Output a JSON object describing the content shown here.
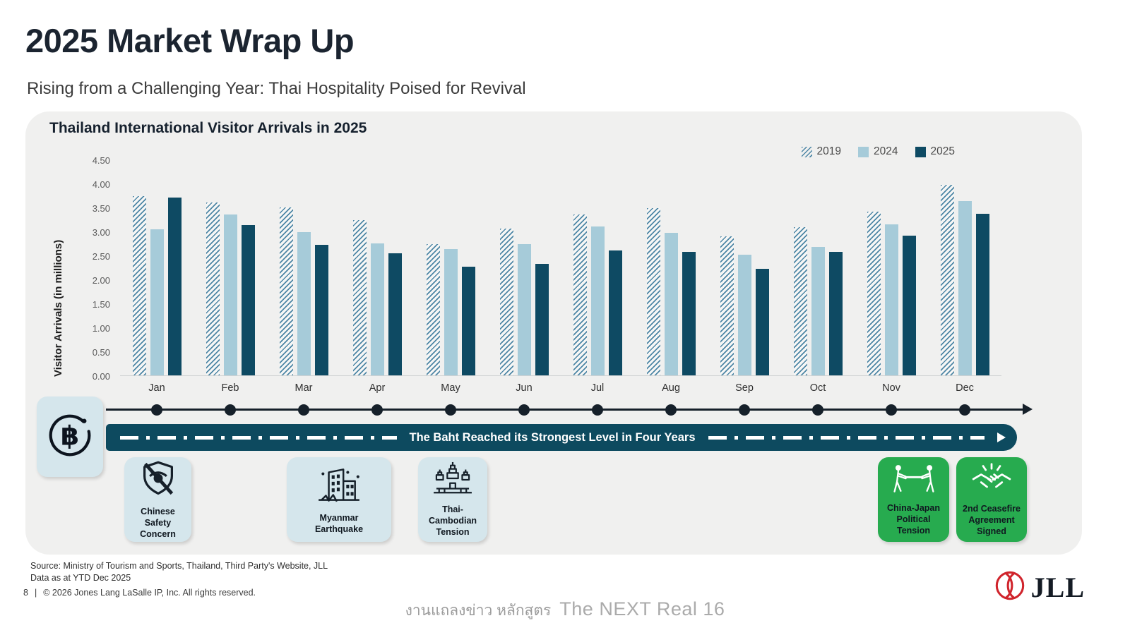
{
  "slide": {
    "title": "2025 Market Wrap Up",
    "subtitle": "Rising from a Challenging Year: Thai Hospitality Poised for Revival"
  },
  "chart_data": {
    "type": "bar",
    "title": "Thailand International Visitor Arrivals in 2025",
    "xlabel": "",
    "ylabel": "Visitor Arrivals (in millions)",
    "ylim": [
      0,
      4.5
    ],
    "ytick_step": 0.5,
    "grid": false,
    "legend_position": "top-right",
    "categories": [
      "Jan",
      "Feb",
      "Mar",
      "Apr",
      "May",
      "Jun",
      "Jul",
      "Aug",
      "Sep",
      "Oct",
      "Nov",
      "Dec"
    ],
    "series": [
      {
        "name": "2019",
        "style": "hatched",
        "values": [
          3.73,
          3.61,
          3.5,
          3.24,
          2.74,
          3.06,
          3.35,
          3.49,
          2.89,
          3.09,
          3.41,
          3.97
        ]
      },
      {
        "name": "2024",
        "style": "solid-light",
        "values": [
          3.05,
          3.36,
          2.99,
          2.75,
          2.63,
          2.74,
          3.11,
          2.97,
          2.51,
          2.68,
          3.15,
          3.63
        ]
      },
      {
        "name": "2025",
        "style": "solid-dark",
        "values": [
          3.71,
          3.13,
          2.72,
          2.55,
          2.27,
          2.32,
          2.61,
          2.58,
          2.22,
          2.58,
          2.91,
          3.37
        ]
      }
    ]
  },
  "timeline": {
    "banner_text": "The Baht Reached its Strongest Level in Four Years",
    "events": [
      {
        "label": "Chinese\nSafety\nConcern",
        "icon": "shield-eye-slash-icon",
        "type": "negative-blue"
      },
      {
        "label": "Myanmar\nEarthquake",
        "icon": "earthquake-building-icon",
        "type": "negative-blue"
      },
      {
        "label": "Thai-\nCambodian\nTension",
        "icon": "temple-icon",
        "type": "negative-blue"
      },
      {
        "label": "China-Japan\nPolitical\nTension",
        "icon": "tug-of-war-icon",
        "type": "positive-green"
      },
      {
        "label": "2nd Ceasefire\nAgreement\nSigned",
        "icon": "handshake-icon",
        "type": "positive-green"
      }
    ]
  },
  "footer": {
    "source_line1": "Source: Ministry of Tourism and Sports, Thailand, Third Party's Website, JLL",
    "source_line2": "Data as at YTD Dec 2025",
    "page_number": "8",
    "divider": "|",
    "copyright": "© 2026 Jones Lang LaSalle IP, Inc. All rights reserved.",
    "watermark_thai": "งานแถลงข่าว หลักสูตร",
    "watermark_en": "The NEXT Real 16",
    "brand": "JLL"
  },
  "colors": {
    "dark_teal": "#0e4a63",
    "light_blue": "#a6cbd9",
    "hatch_blue": "#4d86a5",
    "banner_teal": "#0d4a5f",
    "card_blue": "#d5e6ec",
    "card_green": "#27ab4f",
    "jll_red": "#d0242c",
    "panel_gray": "#f0f0ef"
  }
}
